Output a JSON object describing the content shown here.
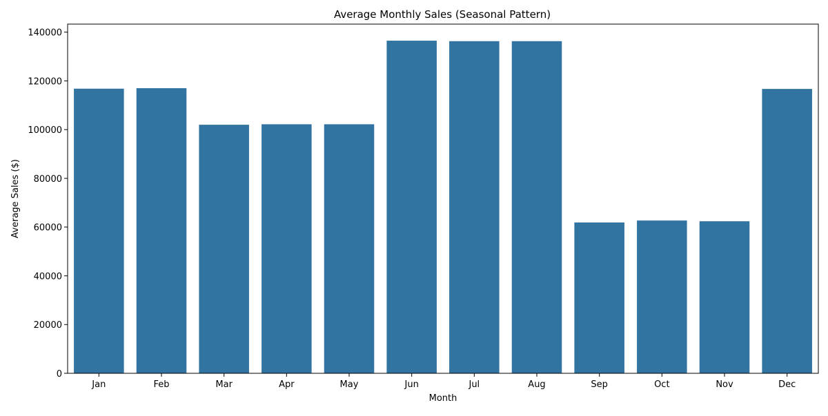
{
  "chart_data": {
    "type": "bar",
    "title": "Average Monthly Sales (Seasonal Pattern)",
    "xlabel": "Month",
    "ylabel": "Average Sales ($)",
    "categories": [
      "Jan",
      "Feb",
      "Mar",
      "Apr",
      "May",
      "Jun",
      "Jul",
      "Aug",
      "Sep",
      "Oct",
      "Nov",
      "Dec"
    ],
    "values": [
      116800,
      117000,
      102000,
      102200,
      102200,
      136500,
      136300,
      136300,
      61900,
      62700,
      62400,
      116700
    ],
    "ylim": [
      0,
      143300
    ],
    "yticks": [
      0,
      20000,
      40000,
      60000,
      80000,
      100000,
      120000,
      140000
    ],
    "ytick_labels": [
      "0",
      "20000",
      "40000",
      "60000",
      "80000",
      "100000",
      "120000",
      "140000"
    ],
    "grid": false,
    "legend": "none",
    "bar_color": "#3274a1"
  }
}
